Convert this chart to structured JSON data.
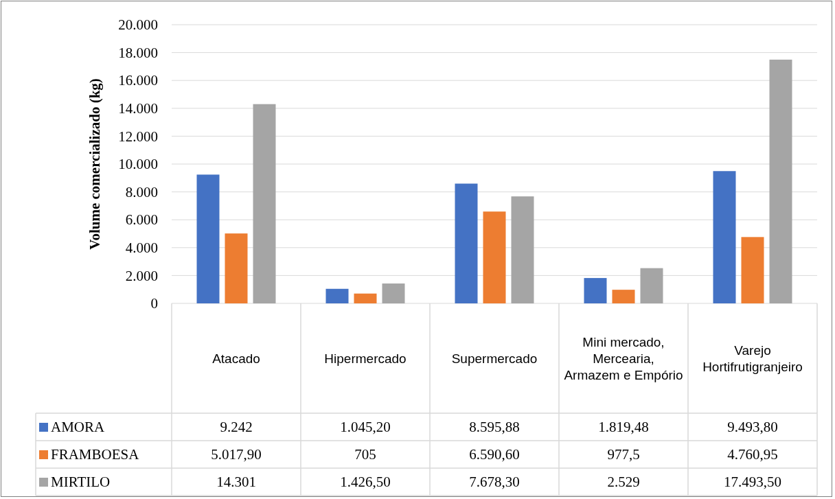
{
  "chart_data": {
    "type": "bar",
    "ylabel": "Volume comercializado (kg)",
    "categories": [
      "Atacado",
      "Hipermercado",
      "Supermercado",
      "Mini mercado, Mercearia, Armazem e Empório",
      "Varejo Hortifrutigranjeiro"
    ],
    "series": [
      {
        "name": "AMORA",
        "color": "#4472c4",
        "values": [
          9242,
          1045.2,
          8595.88,
          1819.48,
          9493.8
        ],
        "value_labels": [
          "9.242",
          "1.045,20",
          "8.595,88",
          "1.819,48",
          "9.493,80"
        ]
      },
      {
        "name": "FRAMBOESA",
        "color": "#ed7d31",
        "values": [
          5017.9,
          705,
          6590.6,
          977.5,
          4760.95
        ],
        "value_labels": [
          "5.017,90",
          "705",
          "6.590,60",
          "977,5",
          "4.760,95"
        ]
      },
      {
        "name": "MIRTILO",
        "color": "#a5a5a5",
        "values": [
          14301,
          1426.5,
          7678.3,
          2529,
          17493.5
        ],
        "value_labels": [
          "14.301",
          "1.426,50",
          "7.678,30",
          "2.529",
          "17.493,50"
        ]
      }
    ],
    "ylim": [
      0,
      20000
    ],
    "yticks": [
      {
        "value": 0,
        "label": "0"
      },
      {
        "value": 2000,
        "label": "2.000"
      },
      {
        "value": 4000,
        "label": "4.000"
      },
      {
        "value": 6000,
        "label": "6.000"
      },
      {
        "value": 8000,
        "label": "8.000"
      },
      {
        "value": 10000,
        "label": "10.000"
      },
      {
        "value": 12000,
        "label": "12.000"
      },
      {
        "value": 14000,
        "label": "14.000"
      },
      {
        "value": 16000,
        "label": "16.000"
      },
      {
        "value": 18000,
        "label": "18.000"
      },
      {
        "value": 20000,
        "label": "20.000"
      }
    ],
    "grid": "y",
    "legend": "bottom"
  }
}
